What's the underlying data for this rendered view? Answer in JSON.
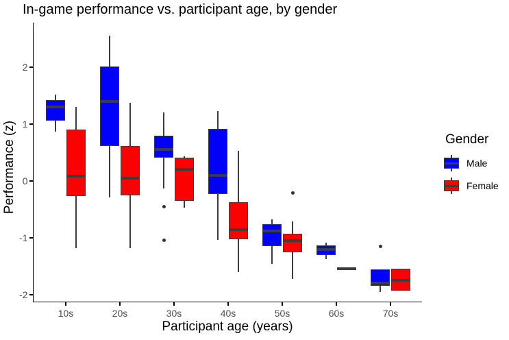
{
  "chart_data": {
    "type": "boxplot",
    "title": "In-game performance vs. participant age, by gender",
    "xlabel": "Participant age (years)",
    "ylabel": "Performance (z)",
    "categories": [
      "10s",
      "20s",
      "30s",
      "40s",
      "50s",
      "60s",
      "70s"
    ],
    "y_ticks": [
      2,
      1,
      0,
      -1,
      -2
    ],
    "ylim": [
      -2.1,
      2.8
    ],
    "grid": false,
    "background": "#FFFFFF",
    "legend": {
      "title": "Gender",
      "position": "right",
      "entries": [
        {
          "label": "Male",
          "color": "#0000FF"
        },
        {
          "label": "Female",
          "color": "#FF0000"
        }
      ]
    },
    "colors": {
      "box_border": "#3C3C3C",
      "median_line": "#3C3C3C",
      "outlier": "#333333",
      "axis_text": "#4D4D4D",
      "axis_line": "#000000"
    },
    "series": [
      {
        "name": "Male",
        "color": "#0000FF",
        "boxes": [
          {
            "category": "10s",
            "min": 0.87,
            "q1": 1.06,
            "median": 1.3,
            "q3": 1.42,
            "max": 1.52,
            "outliers": []
          },
          {
            "category": "20s",
            "min": -0.29,
            "q1": 0.61,
            "median": 1.4,
            "q3": 2.01,
            "max": 2.56,
            "outliers": []
          },
          {
            "category": "30s",
            "min": -0.13,
            "q1": 0.41,
            "median": 0.55,
            "q3": 0.8,
            "max": 1.21,
            "outliers": [
              -0.45,
              -1.04
            ]
          },
          {
            "category": "40s",
            "min": -1.04,
            "q1": -0.23,
            "median": 0.1,
            "q3": 0.92,
            "max": 1.23,
            "outliers": []
          },
          {
            "category": "50s",
            "min": -1.46,
            "q1": -1.15,
            "median": -0.88,
            "q3": -0.76,
            "max": -0.68,
            "outliers": []
          },
          {
            "category": "60s",
            "min": -1.38,
            "q1": -1.3,
            "median": -1.21,
            "q3": -1.13,
            "max": -1.08,
            "outliers": []
          },
          {
            "category": "70s",
            "min": -1.95,
            "q1": -1.84,
            "median": -1.8,
            "q3": -1.56,
            "max": -1.56,
            "outliers": [
              -1.15
            ]
          }
        ]
      },
      {
        "name": "Female",
        "color": "#FF0000",
        "boxes": [
          {
            "category": "10s",
            "min": -1.18,
            "q1": -0.27,
            "median": 0.08,
            "q3": 0.9,
            "max": 1.3,
            "outliers": []
          },
          {
            "category": "20s",
            "min": -1.18,
            "q1": -0.25,
            "median": 0.05,
            "q3": 0.62,
            "max": 1.37,
            "outliers": []
          },
          {
            "category": "30s",
            "min": -0.47,
            "q1": -0.35,
            "median": 0.21,
            "q3": 0.41,
            "max": 0.44,
            "outliers": []
          },
          {
            "category": "40s",
            "min": -1.6,
            "q1": -1.02,
            "median": -0.86,
            "q3": -0.37,
            "max": 0.53,
            "outliers": []
          },
          {
            "category": "50s",
            "min": -1.72,
            "q1": -1.26,
            "median": -1.05,
            "q3": -0.93,
            "max": -0.71,
            "outliers": [
              -0.21
            ]
          },
          {
            "category": "60s",
            "min": -1.55,
            "q1": -1.55,
            "median": -1.55,
            "q3": -1.55,
            "max": -1.55,
            "outliers": []
          },
          {
            "category": "70s",
            "min": -1.93,
            "q1": -1.93,
            "median": -1.75,
            "q3": -1.54,
            "max": -1.54,
            "outliers": []
          }
        ]
      }
    ]
  }
}
